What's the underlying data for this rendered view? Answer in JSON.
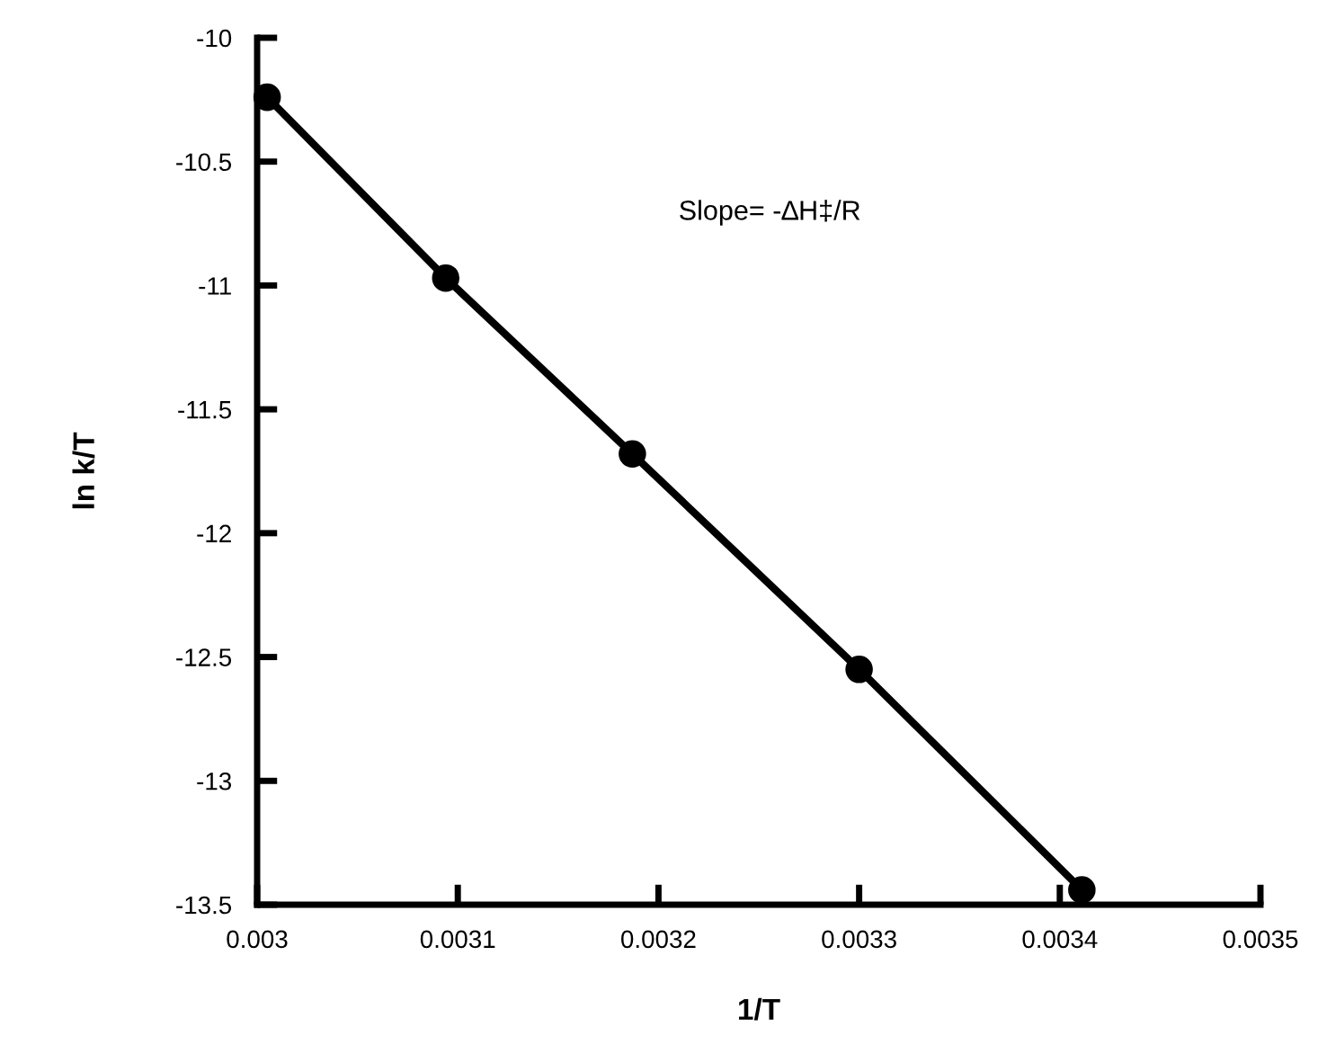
{
  "chart_data": {
    "type": "line",
    "xlabel": "1/T",
    "ylabel": "ln k/T",
    "x": [
      0.003005,
      0.003094,
      0.003187,
      0.0033,
      0.003411
    ],
    "series": [
      {
        "color": "#000000",
        "values": [
          -10.24,
          -10.97,
          -11.68,
          -12.55,
          -13.44
        ]
      }
    ],
    "xlim": [
      0.003,
      0.0035
    ],
    "xticks": [
      0.003,
      0.0031,
      0.0032,
      0.0033,
      0.0034,
      0.0035
    ],
    "ylim": [
      -13.5,
      -10
    ],
    "yticks": [
      -13.5,
      -13,
      -12.5,
      -12,
      -11.5,
      -11,
      -10.5,
      -10
    ],
    "marker": "circle",
    "line_style": "solid",
    "grid": false,
    "legend": false,
    "annotations": [
      "Slope= -∆H‡/R"
    ]
  }
}
